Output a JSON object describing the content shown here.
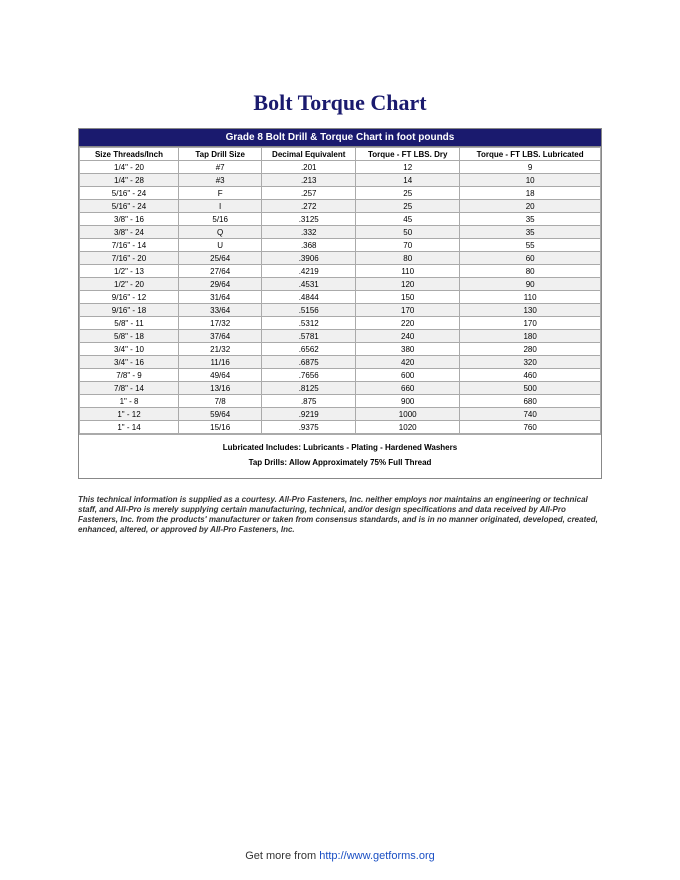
{
  "title": "Bolt Torque Chart",
  "chart": {
    "header": "Grade 8 Bolt Drill & Torque Chart in foot pounds",
    "columns": [
      "Size Threads/Inch",
      "Tap Drill Size",
      "Decimal Equivalent",
      "Torque - FT LBS. Dry",
      "Torque - FT LBS. Lubricated"
    ],
    "rows": [
      [
        "1/4\" - 20",
        "#7",
        ".201",
        "12",
        "9"
      ],
      [
        "1/4\" - 28",
        "#3",
        ".213",
        "14",
        "10"
      ],
      [
        "5/16\" - 24",
        "F",
        ".257",
        "25",
        "18"
      ],
      [
        "5/16\" - 24",
        "I",
        ".272",
        "25",
        "20"
      ],
      [
        "3/8\" - 16",
        "5/16",
        ".3125",
        "45",
        "35"
      ],
      [
        "3/8\" - 24",
        "Q",
        ".332",
        "50",
        "35"
      ],
      [
        "7/16\" - 14",
        "U",
        ".368",
        "70",
        "55"
      ],
      [
        "7/16\" - 20",
        "25/64",
        ".3906",
        "80",
        "60"
      ],
      [
        "1/2\" - 13",
        "27/64",
        ".4219",
        "110",
        "80"
      ],
      [
        "1/2\" - 20",
        "29/64",
        ".4531",
        "120",
        "90"
      ],
      [
        "9/16\" - 12",
        "31/64",
        ".4844",
        "150",
        "110"
      ],
      [
        "9/16\" - 18",
        "33/64",
        ".5156",
        "170",
        "130"
      ],
      [
        "5/8\" - 11",
        "17/32",
        ".5312",
        "220",
        "170"
      ],
      [
        "5/8\" - 18",
        "37/64",
        ".5781",
        "240",
        "180"
      ],
      [
        "3/4\" - 10",
        "21/32",
        ".6562",
        "380",
        "280"
      ],
      [
        "3/4\" - 16",
        "11/16",
        ".6875",
        "420",
        "320"
      ],
      [
        "7/8\" - 9",
        "49/64",
        ".7656",
        "600",
        "460"
      ],
      [
        "7/8\" - 14",
        "13/16",
        ".8125",
        "660",
        "500"
      ],
      [
        "1\" - 8",
        "7/8",
        ".875",
        "900",
        "680"
      ],
      [
        "1\" - 12",
        "59/64",
        ".9219",
        "1000",
        "740"
      ],
      [
        "1\" - 14",
        "15/16",
        ".9375",
        "1020",
        "760"
      ]
    ],
    "note1": "Lubricated Includes: Lubricants - Plating - Hardened Washers",
    "note2": "Tap Drills: Allow Approximately 75% Full Thread"
  },
  "disclaimer": "This technical information is supplied as a courtesy. All-Pro Fasteners, Inc. neither employs nor maintains an engineering or technical staff, and All-Pro is merely supplying certain manufacturing, technical, and/or design specifications and data received by All-Pro Fasteners, Inc. from the products' manufacturer or taken from consensus standards, and is in no manner originated, developed, created, enhanced, altered, or approved by All-Pro Fasteners, Inc.",
  "footer": {
    "prefix": "Get more from ",
    "link_text": "http://www.getforms.org",
    "link_href": "http://www.getforms.org"
  },
  "styling": {
    "header_bg": "#1a1a6e",
    "header_fg": "#ffffff",
    "title_color": "#1a1a6e",
    "row_alt_bg": "#f0f0f0",
    "border_color": "#aaaaaa",
    "link_color": "#1a4fc4",
    "page_bg": "#ffffff",
    "title_fontsize": 22,
    "table_fontsize": 8,
    "disclaimer_fontsize": 8,
    "footer_fontsize": 11,
    "col_widths_pct": [
      19,
      16,
      18,
      20,
      27
    ]
  }
}
